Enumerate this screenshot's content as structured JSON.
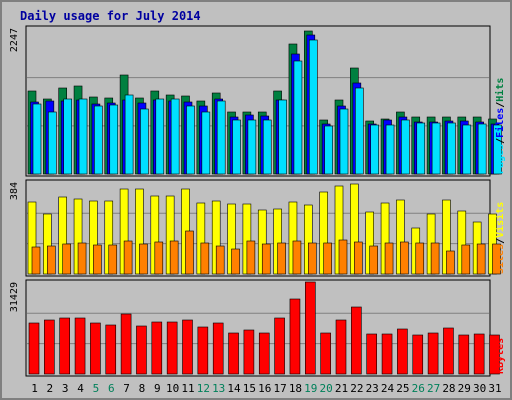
{
  "chart_data": {
    "type": "bar",
    "title": "Daily usage for July 2014",
    "categories": [
      "1",
      "2",
      "3",
      "4",
      "5",
      "6",
      "7",
      "8",
      "9",
      "10",
      "11",
      "12",
      "13",
      "14",
      "15",
      "16",
      "17",
      "18",
      "19",
      "20",
      "21",
      "22",
      "23",
      "24",
      "25",
      "26",
      "27",
      "28",
      "29",
      "30",
      "31"
    ],
    "weekend_days": [
      "5",
      "6",
      "12",
      "13",
      "19",
      "20",
      "26",
      "27"
    ],
    "panels": [
      {
        "name": "hits-files-pages",
        "max_label": "2247",
        "ymax": 2247,
        "axis_labels": [
          "Pages",
          "Files",
          "Hits"
        ],
        "series": [
          {
            "name": "Hits",
            "color": "#008040",
            "values": [
              1270,
              1160,
              1330,
              1350,
              1190,
              1170,
              1530,
              1170,
              1270,
              1220,
              1200,
              1120,
              1250,
              950,
              960,
              960,
              1270,
              2000,
              2200,
              830,
              1140,
              1630,
              820,
              850,
              950,
              880,
              870,
              880,
              880,
              880,
              850
            ]
          },
          {
            "name": "Files",
            "color": "#0000ff",
            "values": [
              1110,
              1130,
              1130,
              1140,
              1080,
              1090,
              1140,
              1090,
              1140,
              1130,
              1110,
              1050,
              1160,
              870,
              910,
              890,
              1140,
              1850,
              2140,
              770,
              1050,
              1400,
              770,
              830,
              880,
              800,
              800,
              810,
              810,
              800,
              770
            ]
          },
          {
            "name": "Pages",
            "color": "#00e0ff",
            "values": [
              1080,
              950,
              1150,
              1150,
              1040,
              1060,
              1210,
              1000,
              1150,
              1150,
              1050,
              950,
              1120,
              830,
              830,
              830,
              1140,
              1740,
              2070,
              740,
              1000,
              1320,
              750,
              750,
              830,
              780,
              780,
              790,
              760,
              770,
              760
            ]
          }
        ]
      },
      {
        "name": "visits-sites",
        "max_label": "384",
        "ymax": 384,
        "axis_labels": [
          "Sites",
          "Visits"
        ],
        "series": [
          {
            "name": "Visits",
            "color": "#ffff00",
            "values": [
              300,
              252,
              320,
              315,
              304,
              306,
              354,
              353,
              324,
              324,
              356,
              298,
              306,
              292,
              293,
              269,
              270,
              300,
              288,
              341,
              368,
              374,
              258,
              297,
              310,
              190,
              250,
              310,
              265,
              216,
              250
            ]
          },
          {
            "name": "Sites",
            "color": "#ff8000",
            "values": [
              112,
              118,
              127,
              130,
              120,
              121,
              137,
              126,
              135,
              138,
              180,
              130,
              115,
              104,
              136,
              126,
              129,
              136,
              131,
              128,
              142,
              132,
              117,
              128,
              135,
              128,
              128,
              95,
              122,
              125,
              126
            ]
          }
        ]
      },
      {
        "name": "kbytes",
        "max_label": "31429",
        "ymax": 31429,
        "axis_labels": [
          "KBytes"
        ],
        "series": [
          {
            "name": "KBytes",
            "color": "#ff0000",
            "values": [
              17400,
              18400,
              19300,
              19300,
              17400,
              16800,
              20400,
              16400,
              17900,
              17900,
              18300,
              16100,
              17400,
              13900,
              15000,
              13900,
              19300,
              25700,
              31429,
              14000,
              18300,
              22800,
              13500,
              13500,
              15400,
              13200,
              13900,
              15600,
              13400,
              13600,
              13400
            ]
          }
        ]
      }
    ]
  }
}
